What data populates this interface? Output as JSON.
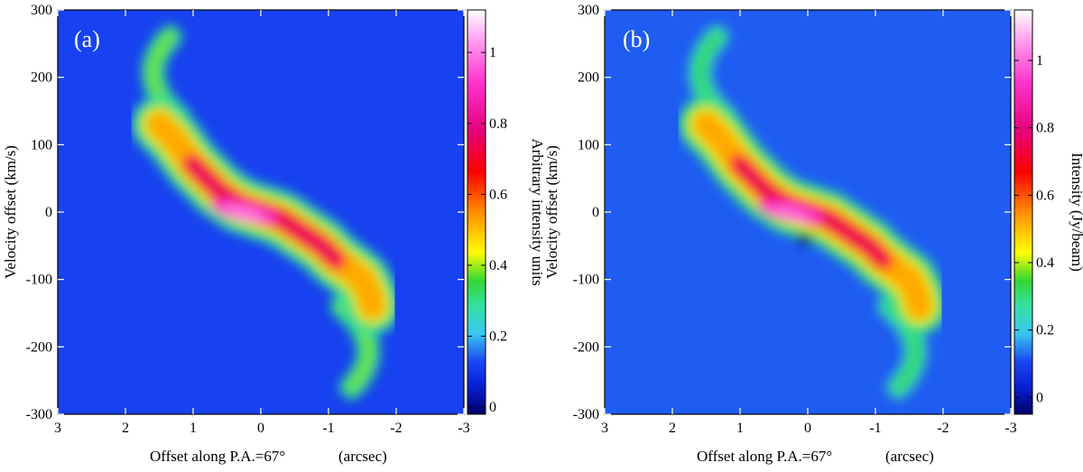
{
  "figure": {
    "panels": [
      "panel_a",
      "panel_b"
    ]
  },
  "colormap": {
    "stops": [
      {
        "pos": 0.0,
        "color": "#000066"
      },
      {
        "pos": 0.07,
        "color": "#0a1fd6"
      },
      {
        "pos": 0.13,
        "color": "#1a47f2"
      },
      {
        "pos": 0.2,
        "color": "#38c8f0"
      },
      {
        "pos": 0.27,
        "color": "#33e0a0"
      },
      {
        "pos": 0.33,
        "color": "#33d633"
      },
      {
        "pos": 0.4,
        "color": "#ffff00"
      },
      {
        "pos": 0.5,
        "color": "#ff8c00"
      },
      {
        "pos": 0.6,
        "color": "#ff0000"
      },
      {
        "pos": 0.7,
        "color": "#e6007a"
      },
      {
        "pos": 0.82,
        "color": "#ff33cc"
      },
      {
        "pos": 0.92,
        "color": "#ff99ee"
      },
      {
        "pos": 1.0,
        "color": "#ffffff"
      }
    ]
  },
  "chart_data": [
    {
      "type": "heatmap",
      "panel_label": "(a)",
      "title": "",
      "xlabel": "Offset along P.A.=67°",
      "xlabel_unit": "(arcsec)",
      "ylabel": "Velocity offset (km/s)",
      "xlim": [
        3,
        -3
      ],
      "ylim": [
        -300,
        300
      ],
      "xticks": [
        3,
        2,
        1,
        0,
        -1,
        -2,
        -3
      ],
      "yticks": [
        300,
        200,
        100,
        0,
        -100,
        -200,
        -300
      ],
      "colorbar": {
        "label": "Arbitrary intensity units",
        "range": [
          -0.02,
          1.12
        ],
        "ticks": [
          1,
          0.8,
          0.6,
          0.4,
          0.2,
          0
        ]
      },
      "background_value": 0.12,
      "ridge": {
        "x": [
          1.5,
          1.3,
          1.0,
          0.6,
          0.3,
          0.0,
          -0.3,
          -0.6,
          -0.9,
          -1.1,
          -1.3,
          -1.5,
          -1.6,
          -1.65
        ],
        "v": [
          130,
          110,
          70,
          30,
          10,
          0,
          -10,
          -30,
          -50,
          -70,
          -85,
          -100,
          -120,
          -140
        ]
      },
      "arcs": [
        {
          "x_range": [
            1.2,
            1.9
          ],
          "v_range": [
            140,
            260
          ],
          "peak": 0.3
        },
        {
          "x_range": [
            -1.2,
            -1.9
          ],
          "v_range": [
            -140,
            -260
          ],
          "peak": 0.3
        }
      ],
      "peak_intensity": 1.0
    },
    {
      "type": "heatmap",
      "panel_label": "(b)",
      "title": "",
      "xlabel": "Offset along P.A.=67°",
      "xlabel_unit": "(arcsec)",
      "ylabel": "Velocity offset (km/s)",
      "xlim": [
        3,
        -3
      ],
      "ylim": [
        -300,
        300
      ],
      "xticks": [
        3,
        2,
        1,
        0,
        -1,
        -2,
        -3
      ],
      "yticks": [
        300,
        200,
        100,
        0,
        -100,
        -200,
        -300
      ],
      "colorbar": {
        "label": "Intensity (Jy/beam)",
        "range": [
          -0.05,
          1.15
        ],
        "ticks": [
          1,
          0.8,
          0.6,
          0.4,
          0.2,
          0
        ]
      },
      "background_value": 0.12,
      "ridge": {
        "x": [
          1.5,
          1.3,
          1.0,
          0.6,
          0.3,
          0.0,
          -0.3,
          -0.6,
          -0.9,
          -1.1,
          -1.3,
          -1.5,
          -1.6,
          -1.65
        ],
        "v": [
          130,
          110,
          70,
          30,
          10,
          0,
          -10,
          -30,
          -50,
          -70,
          -85,
          -100,
          -120,
          -140
        ]
      },
      "arcs": [
        {
          "x_range": [
            1.2,
            1.9
          ],
          "v_range": [
            140,
            260
          ],
          "peak": 0.25
        },
        {
          "x_range": [
            -1.2,
            -1.9
          ],
          "v_range": [
            -140,
            -260
          ],
          "peak": 0.25
        }
      ],
      "absorption": {
        "x": 0.05,
        "v": -40,
        "value": -0.05
      },
      "peak_intensity": 1.0
    }
  ]
}
